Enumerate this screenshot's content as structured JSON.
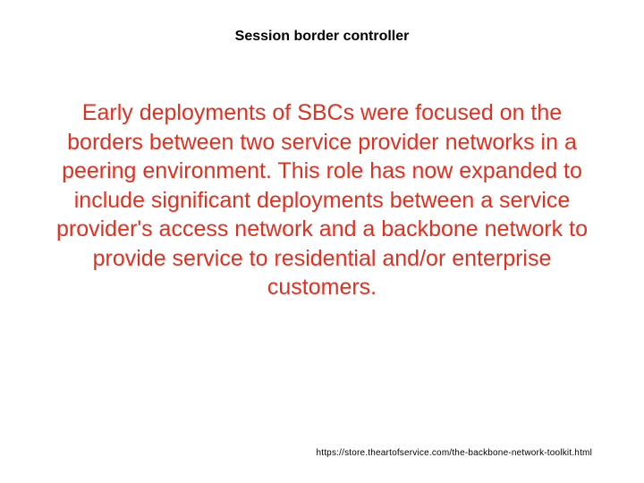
{
  "slide": {
    "title": "Session border controller",
    "body": "Early deployments of SBCs were focused on the borders between two service provider networks in a peering environment.  This role has now expanded to include significant deployments between a service provider's access network and a backbone network to provide service to residential and/or enterprise customers.",
    "footer_url": "https://store.theartofservice.com/the-backbone-network-toolkit.html"
  },
  "style": {
    "background_color": "#ffffff",
    "title_color": "#000000",
    "title_fontsize": 16,
    "title_weight": "bold",
    "body_color": "#e03020",
    "body_fontsize": 25,
    "body_align": "center",
    "body_lineheight": 1.3,
    "footer_color": "#000000",
    "footer_fontsize": 10,
    "font_family": "Arial"
  }
}
